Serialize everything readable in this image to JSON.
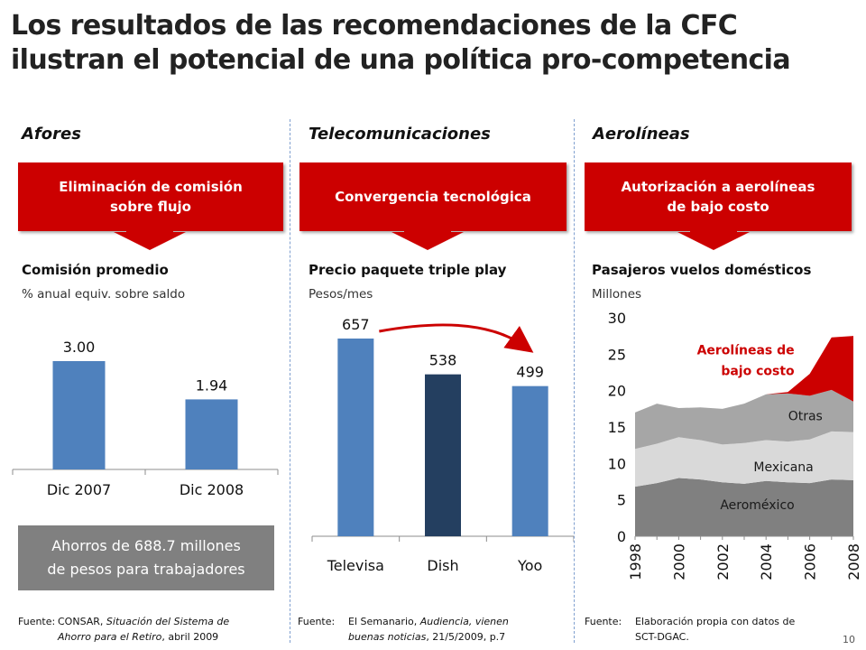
{
  "title": {
    "line1": "Los resultados de las recomendaciones de la CFC",
    "line2": "ilustran el potencial de una política pro-competencia"
  },
  "sections": [
    {
      "name": "Afores",
      "box": [
        "Eliminación de comisión",
        "sobre flujo"
      ],
      "chart_title": "Comisión promedio",
      "chart_subtitle": "% anual equiv. sobre saldo",
      "savings": [
        "Ahorros de 688.7 millones",
        "de pesos para trabajadores"
      ],
      "source_label": "Fuente:",
      "source_line1_plain": "CONSAR, ",
      "source_line1_italic": "Situación del Sistema de",
      "source_line2_italic": "Ahorro para el Retiro",
      "source_line2_plain": ", abril 2009"
    },
    {
      "name": "Telecomunicaciones",
      "box": [
        "Convergencia tecnológica"
      ],
      "chart_title": "Precio paquete triple play",
      "chart_subtitle": "Pesos/mes",
      "source_label": "Fuente:",
      "source_line1_plain": "El Semanario, ",
      "source_line1_italic": "Audiencia, vienen",
      "source_line2_italic": "buenas noticias",
      "source_line2_plain": ", 21/5/2009, p.7"
    },
    {
      "name": "Aerolíneas",
      "box": [
        "Autorización a aerolíneas",
        "de bajo costo"
      ],
      "chart_title": "Pasajeros vuelos domésticos",
      "chart_subtitle": "Millones",
      "source_label": "Fuente:",
      "source_line1_plain": "Elaboración propia con datos de",
      "source_line2_plain": "SCT-DGAC."
    }
  ],
  "page_number": "10",
  "colors": {
    "red": "#cc0000",
    "bar_blue": "#4f81bd",
    "bar_navy": "#243f60",
    "aeromexico": "#808080",
    "mexicana": "#d9d9d9",
    "otras": "#a6a6a6",
    "low_cost": "#cc0000"
  },
  "chart_data": [
    {
      "type": "bar",
      "categories": [
        "Dic 2007",
        "Dic 2008"
      ],
      "values": [
        3.0,
        1.94
      ],
      "labels": [
        "3.00",
        "1.94"
      ],
      "ylim": [
        0,
        3.5
      ],
      "colors": [
        "#4f81bd",
        "#4f81bd"
      ]
    },
    {
      "type": "bar",
      "categories": [
        "Televisa",
        "Dish",
        "Yoo"
      ],
      "values": [
        657,
        538,
        499
      ],
      "labels": [
        "657",
        "538",
        "499"
      ],
      "ylim": [
        0,
        720
      ],
      "colors": [
        "#4f81bd",
        "#243f60",
        "#4f81bd"
      ]
    },
    {
      "type": "area",
      "stacked": true,
      "x": [
        1998,
        1999,
        2000,
        2001,
        2002,
        2003,
        2004,
        2005,
        2006,
        2007,
        2008
      ],
      "x_ticks": [
        "1998",
        "2000",
        "2002",
        "2004",
        "2006",
        "2008"
      ],
      "y_ticks": [
        "0",
        "5",
        "10",
        "15",
        "20",
        "25",
        "30"
      ],
      "ylim": [
        0,
        30
      ],
      "series": [
        {
          "name": "Aeroméxico",
          "values": [
            6.8,
            7.3,
            8.0,
            7.8,
            7.4,
            7.2,
            7.6,
            7.4,
            7.3,
            7.8,
            7.7
          ]
        },
        {
          "name": "Mexicana",
          "values": [
            5.2,
            5.4,
            5.6,
            5.4,
            5.2,
            5.6,
            5.6,
            5.6,
            6.0,
            6.6,
            6.6
          ]
        },
        {
          "name": "Otras",
          "values": [
            5.0,
            5.5,
            4.0,
            4.5,
            4.9,
            5.4,
            6.3,
            6.6,
            6.0,
            5.7,
            4.2
          ]
        },
        {
          "name": "Aerolíneas de bajo costo",
          "values": [
            0,
            0,
            0,
            0,
            0,
            0,
            0,
            0.2,
            3.0,
            7.2,
            9.0
          ]
        }
      ],
      "series_labels": {
        "aeromexico": "Aeroméxico",
        "mexicana": "Mexicana",
        "otras": "Otras",
        "lowcost_line1": "Aerolíneas de",
        "lowcost_line2": "bajo costo"
      }
    }
  ]
}
